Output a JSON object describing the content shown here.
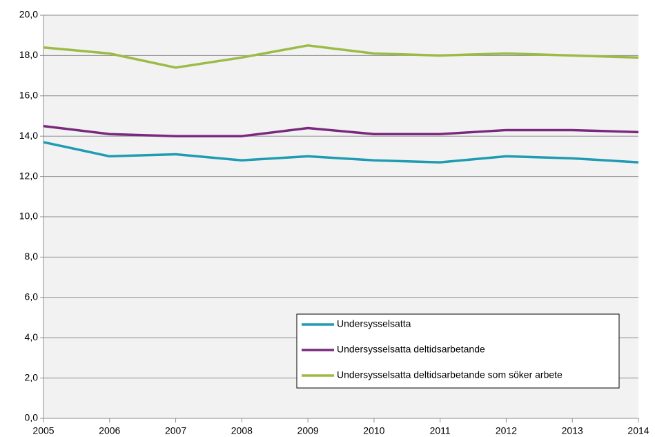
{
  "chart_data": {
    "type": "line",
    "x": [
      2005,
      2006,
      2007,
      2008,
      2009,
      2010,
      2011,
      2012,
      2013,
      2014
    ],
    "xlim": [
      2005,
      2014
    ],
    "xticks": [
      2005,
      2006,
      2007,
      2008,
      2009,
      2010,
      2011,
      2012,
      2013,
      2014
    ],
    "ylim": [
      0,
      20
    ],
    "yticks": [
      {
        "value": 0,
        "label": "0,0"
      },
      {
        "value": 2,
        "label": "2,0"
      },
      {
        "value": 4,
        "label": "4,0"
      },
      {
        "value": 6,
        "label": "6,0"
      },
      {
        "value": 8,
        "label": "8,0"
      },
      {
        "value": 10,
        "label": "10,0"
      },
      {
        "value": 12,
        "label": "12,0"
      },
      {
        "value": 14,
        "label": "14,0"
      },
      {
        "value": 16,
        "label": "16,0"
      },
      {
        "value": 18,
        "label": "18,0"
      },
      {
        "value": 20,
        "label": "20,0"
      }
    ],
    "grid": true,
    "legend": "lower right",
    "series": [
      {
        "name": "Undersysselsatta",
        "color": "#1f9bb2",
        "values": [
          13.7,
          13.0,
          13.1,
          12.8,
          13.0,
          12.8,
          12.7,
          13.0,
          12.9,
          12.7
        ]
      },
      {
        "name": "Undersysselsatta deltidsarbetande",
        "color": "#7a2a7e",
        "values": [
          14.5,
          14.1,
          14.0,
          14.0,
          14.4,
          14.1,
          14.1,
          14.3,
          14.3,
          14.2
        ]
      },
      {
        "name": "Undersysselsatta deltidsarbetande som söker arbete",
        "color": "#9bbb47",
        "values": [
          18.4,
          18.1,
          17.4,
          17.9,
          18.5,
          18.1,
          18.0,
          18.1,
          18.0,
          17.9
        ]
      }
    ]
  }
}
